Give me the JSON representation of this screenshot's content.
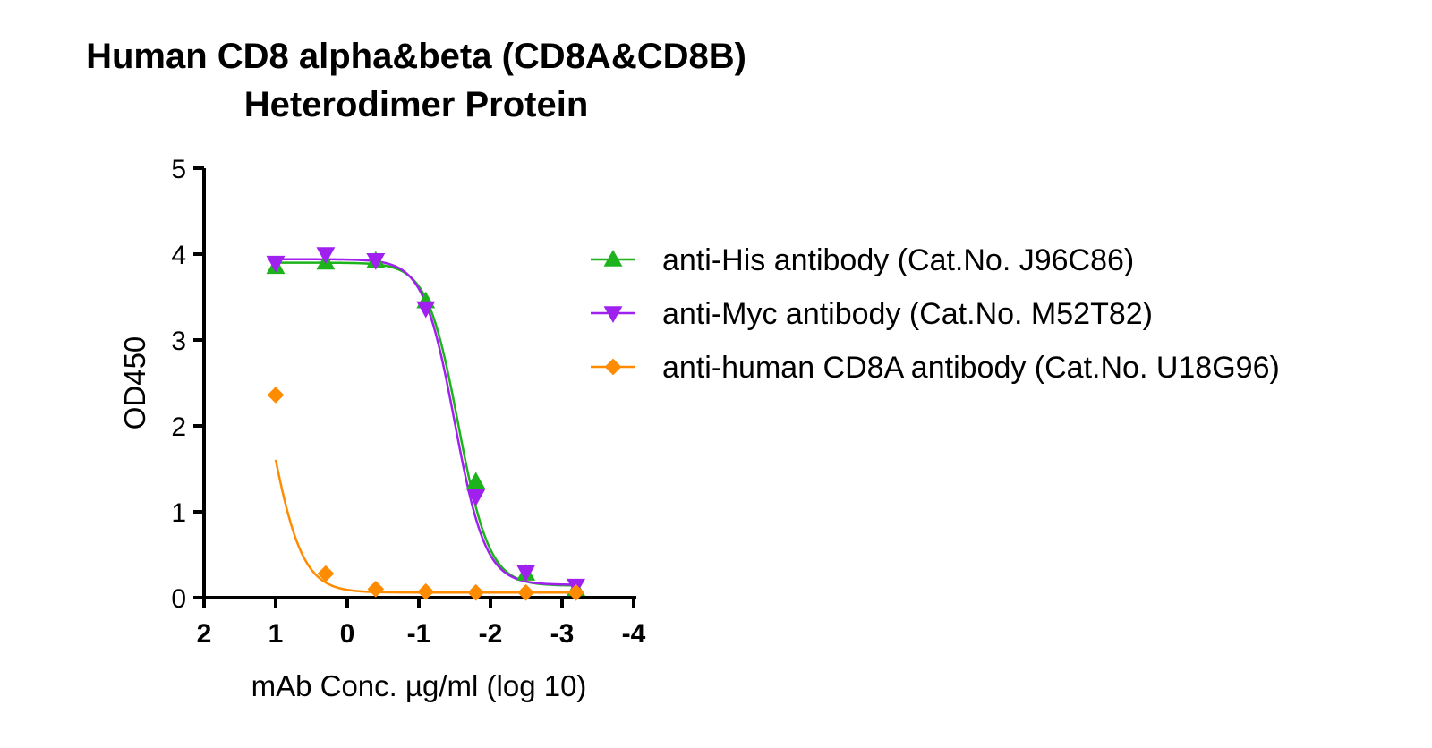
{
  "chart_data": {
    "type": "line",
    "title_lines": [
      "Human CD8 alpha&beta (CD8A&CD8B)",
      "Heterodimer Protein"
    ],
    "xlabel": "mAb Conc. µg/ml (log 10)",
    "ylabel": "OD450",
    "xlim": [
      2,
      -4
    ],
    "ylim": [
      0,
      5
    ],
    "x_ticks": [
      "2",
      "1",
      "0",
      "-1",
      "-2",
      "-3",
      "-4"
    ],
    "x_tick_values": [
      2,
      1,
      0,
      -1,
      -2,
      -3,
      -4
    ],
    "y_ticks": [
      "0",
      "1",
      "2",
      "3",
      "4",
      "5"
    ],
    "y_tick_values": [
      0,
      1,
      2,
      3,
      4,
      5
    ],
    "grid": false,
    "legend_position": "right",
    "series": [
      {
        "name": "anti-His antibody (Cat.No. J96C86)",
        "color": "#1db31d",
        "marker": "triangle-up",
        "fit": {
          "bottom": 0.14,
          "top": 3.9,
          "logEC50": -1.55,
          "hill": 2.0
        },
        "x": [
          1.0,
          0.301,
          -0.398,
          -1.097,
          -1.796,
          -2.495,
          -3.194
        ],
        "y": [
          3.85,
          3.9,
          3.92,
          3.45,
          1.35,
          0.28,
          0.1
        ]
      },
      {
        "name": "anti-Myc antibody (Cat.No. M52T82)",
        "color": "#a020f0",
        "marker": "triangle-down",
        "fit": {
          "bottom": 0.15,
          "top": 3.94,
          "logEC50": -1.5,
          "hill": 2.0
        },
        "x": [
          1.0,
          0.301,
          -0.398,
          -1.097,
          -1.796,
          -2.495,
          -3.194
        ],
        "y": [
          3.9,
          4.0,
          3.93,
          3.37,
          1.18,
          0.3,
          0.14
        ]
      },
      {
        "name": "anti-human CD8A antibody (Cat.No. U18G96)",
        "color": "#ff8c00",
        "marker": "diamond",
        "fit": {
          "bottom": 0.06,
          "top": 4.0,
          "logEC50": 1.1,
          "hill": 1.9
        },
        "x": [
          1.0,
          0.301,
          -0.398,
          -1.097,
          -1.796,
          -2.495,
          -3.194
        ],
        "y": [
          2.36,
          0.28,
          0.1,
          0.07,
          0.06,
          0.06,
          0.06
        ]
      }
    ]
  }
}
